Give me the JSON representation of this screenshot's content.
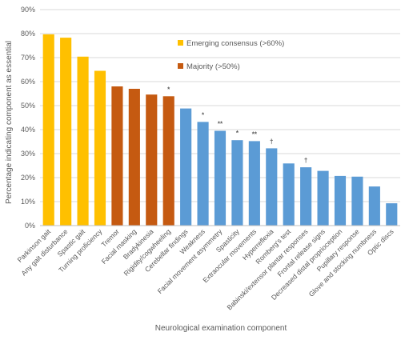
{
  "chart_data": {
    "type": "bar",
    "categories": [
      "Parkinson gait",
      "Any gait disturbance",
      "Spastic gait",
      "Turning proficiency",
      "Tremor",
      "Facial masking",
      "Bradykinesia",
      "Rigidity/cogwheeling",
      "Cerebellar findings",
      "Weakness",
      "Facial movement asymmetry",
      "Spasticity",
      "Extraocular movements",
      "Hyperreflexia",
      "Romberg's test",
      "Babinski/extensor plantar responses",
      "Frontal release signs",
      "Decreased distal proprioception",
      "Pupillary response",
      "Glove and stocking numbness",
      "Optic discs"
    ],
    "values": [
      79.7,
      78.3,
      70.4,
      64.5,
      58.0,
      57.0,
      54.6,
      53.9,
      48.8,
      43.2,
      39.5,
      35.6,
      35.2,
      32.2,
      25.9,
      24.3,
      22.8,
      20.7,
      20.4,
      16.3,
      9.3
    ],
    "groups": [
      "consensus",
      "consensus",
      "consensus",
      "consensus",
      "majority",
      "majority",
      "majority",
      "majority",
      "other",
      "other",
      "other",
      "other",
      "other",
      "other",
      "other",
      "other",
      "other",
      "other",
      "other",
      "other",
      "other"
    ],
    "markers": [
      "",
      "",
      "",
      "",
      "",
      "",
      "",
      "*",
      "",
      "*",
      "**",
      "*",
      "**",
      "†",
      "",
      "†",
      "",
      "",
      "",
      "",
      ""
    ],
    "ylabel": "Percentage indicating component as essential",
    "xlabel": "Neurological examination component",
    "ylim": [
      0,
      90
    ],
    "yticks": [
      "0%",
      "10%",
      "20%",
      "30%",
      "40%",
      "50%",
      "60%",
      "70%",
      "80%",
      "90%"
    ],
    "grid": true,
    "legend": {
      "placement": "top-center",
      "entries": [
        {
          "name": "Emerging consensus (>60%)",
          "color": "#FFC000"
        },
        {
          "name": "Majority (>50%)",
          "color": "#C55A11"
        }
      ]
    },
    "colors": {
      "consensus": "#FFC000",
      "majority": "#C55A11",
      "other": "#5B9BD5",
      "grid": "#D9D9D9"
    }
  }
}
